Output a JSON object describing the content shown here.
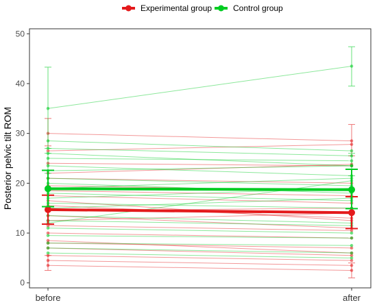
{
  "chart_data": {
    "type": "line",
    "categories": [
      "before",
      "after"
    ],
    "ylabel": "Posterior pelvic tilt ROM",
    "xlabel": "",
    "ylim": [
      -1,
      51
    ],
    "yticks": [
      0,
      10,
      20,
      30,
      40,
      50
    ],
    "grid": false,
    "legend_position": "top",
    "series": [
      {
        "name": "Experimental group",
        "color": "#e41a1c",
        "mean": [
          14.7,
          14.1
        ],
        "error": [
          [
            11.8,
            17.6
          ],
          [
            10.9,
            17.3
          ]
        ],
        "subjects": [
          [
            30.0,
            28.5
          ],
          [
            26.5,
            27.8
          ],
          [
            24.0,
            23.5
          ],
          [
            22.0,
            23.8
          ],
          [
            21.0,
            20.0
          ],
          [
            19.5,
            18.5
          ],
          [
            18.5,
            17.5
          ],
          [
            17.5,
            16.0
          ],
          [
            16.5,
            12.5
          ],
          [
            15.5,
            13.0
          ],
          [
            14.5,
            15.0
          ],
          [
            13.5,
            11.0
          ],
          [
            12.5,
            14.0
          ],
          [
            11.5,
            10.5
          ],
          [
            10.0,
            9.0
          ],
          [
            8.5,
            6.0
          ],
          [
            8.0,
            7.0
          ],
          [
            7.0,
            5.5
          ],
          [
            5.5,
            4.5
          ],
          [
            4.5,
            3.5
          ],
          [
            3.5,
            2.5
          ]
        ],
        "subject_error": [
          [
            [
              27.5,
              33.0
            ],
            [
              25.5,
              31.8
            ]
          ],
          [
            [
              2.5,
              5.5
            ],
            [
              1.0,
              4.0
            ]
          ]
        ]
      },
      {
        "name": "Control group",
        "color": "#00cc22",
        "mean": [
          18.9,
          18.7
        ],
        "error": [
          [
            15.3,
            22.6
          ],
          [
            14.9,
            22.8
          ]
        ],
        "subjects": [
          [
            35.0,
            43.5
          ],
          [
            28.5,
            26.5
          ],
          [
            27.0,
            25.5
          ],
          [
            26.0,
            23.5
          ],
          [
            25.0,
            24.5
          ],
          [
            23.5,
            21.5
          ],
          [
            22.5,
            23.5
          ],
          [
            21.0,
            19.5
          ],
          [
            20.0,
            18.0
          ],
          [
            19.0,
            21.0
          ],
          [
            18.0,
            16.5
          ],
          [
            17.0,
            19.0
          ],
          [
            16.0,
            15.0
          ],
          [
            15.0,
            17.0
          ],
          [
            13.5,
            12.0
          ],
          [
            12.5,
            11.5
          ],
          [
            12.0,
            20.5
          ],
          [
            11.0,
            10.0
          ],
          [
            9.5,
            9.0
          ],
          [
            8.0,
            7.5
          ],
          [
            7.0,
            6.0
          ],
          [
            6.0,
            5.0
          ]
        ],
        "subject_error": [
          [
            [
              27.0,
              43.3
            ],
            [
              39.5,
              47.4
            ]
          ],
          [
            [
              22.0,
              26.0
            ],
            [
              21.5,
              26.0
            ]
          ]
        ]
      }
    ]
  }
}
